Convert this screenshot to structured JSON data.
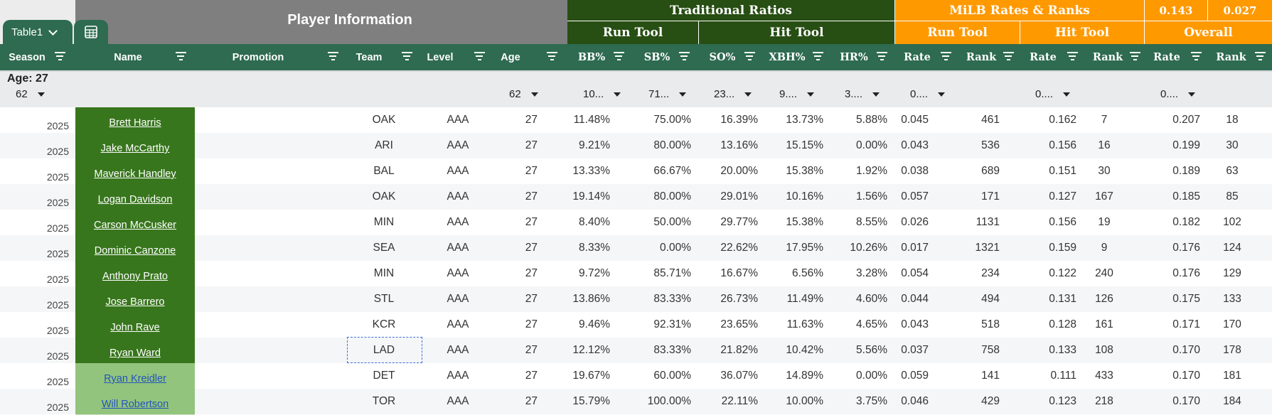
{
  "table_tab": {
    "label": "Table1",
    "chevron_icon": "chevron-down-icon",
    "grid_icon": "table-grid-icon"
  },
  "groups": {
    "player_info": "Player Information",
    "traditional_ratios": "Traditional Ratios",
    "milb": "MiLB Rates & Ranks",
    "val1": "0.143",
    "val2": "0.027",
    "trad_run_tool": "Run Tool",
    "trad_hit_tool": "Hit Tool",
    "milb_run_tool": "Run Tool",
    "milb_hit_tool": "Hit Tool",
    "milb_overall": "Overall"
  },
  "columns": [
    "Season",
    "Name",
    "Promotion",
    "Team",
    "Level",
    "Age",
    "BB%",
    "SB%",
    "SO%",
    "XBH%",
    "HR%",
    "Rate",
    "Rank",
    "Rate",
    "Rank",
    "Rate",
    "Rank"
  ],
  "filter_band": {
    "group_label": "Age: 27",
    "group_count": "62",
    "age": "62",
    "bb": "10...",
    "sb": "71...",
    "so": "23...",
    "xbh": "9....",
    "hr": "3....",
    "run_rate": "0....",
    "hit_rate": "0....",
    "overall_rate": "0...."
  },
  "rows": [
    {
      "season": "2025",
      "name": "Brett Harris",
      "promotion": "",
      "team": "OAK",
      "level": "AAA",
      "age": "27",
      "bb": "11.48%",
      "sb": "75.00%",
      "so": "16.39%",
      "xbh": "13.73%",
      "hr": "5.88%",
      "run_rate": "0.045",
      "run_rank": "461",
      "hit_rate": "0.162",
      "hit_rank": "7",
      "ov_rate": "0.207",
      "ov_rank": "18"
    },
    {
      "season": "2025",
      "name": "Jake McCarthy",
      "promotion": "",
      "team": "ARI",
      "level": "AAA",
      "age": "27",
      "bb": "9.21%",
      "sb": "80.00%",
      "so": "13.16%",
      "xbh": "15.15%",
      "hr": "0.00%",
      "run_rate": "0.043",
      "run_rank": "536",
      "hit_rate": "0.156",
      "hit_rank": "16",
      "ov_rate": "0.199",
      "ov_rank": "30"
    },
    {
      "season": "2025",
      "name": "Maverick Handley",
      "promotion": "",
      "team": "BAL",
      "level": "AAA",
      "age": "27",
      "bb": "13.33%",
      "sb": "66.67%",
      "so": "20.00%",
      "xbh": "15.38%",
      "hr": "1.92%",
      "run_rate": "0.038",
      "run_rank": "689",
      "hit_rate": "0.151",
      "hit_rank": "30",
      "ov_rate": "0.189",
      "ov_rank": "63"
    },
    {
      "season": "2025",
      "name": "Logan Davidson",
      "promotion": "",
      "team": "OAK",
      "level": "AAA",
      "age": "27",
      "bb": "19.14%",
      "sb": "80.00%",
      "so": "29.01%",
      "xbh": "10.16%",
      "hr": "1.56%",
      "run_rate": "0.057",
      "run_rank": "171",
      "hit_rate": "0.127",
      "hit_rank": "167",
      "ov_rate": "0.185",
      "ov_rank": "85"
    },
    {
      "season": "2025",
      "name": "Carson McCusker",
      "promotion": "",
      "team": "MIN",
      "level": "AAA",
      "age": "27",
      "bb": "8.40%",
      "sb": "50.00%",
      "so": "29.77%",
      "xbh": "15.38%",
      "hr": "8.55%",
      "run_rate": "0.026",
      "run_rank": "1131",
      "hit_rate": "0.156",
      "hit_rank": "19",
      "ov_rate": "0.182",
      "ov_rank": "102"
    },
    {
      "season": "2025",
      "name": "Dominic Canzone",
      "promotion": "",
      "team": "SEA",
      "level": "AAA",
      "age": "27",
      "bb": "8.33%",
      "sb": "0.00%",
      "so": "22.62%",
      "xbh": "17.95%",
      "hr": "10.26%",
      "run_rate": "0.017",
      "run_rank": "1321",
      "hit_rate": "0.159",
      "hit_rank": "9",
      "ov_rate": "0.176",
      "ov_rank": "124"
    },
    {
      "season": "2025",
      "name": "Anthony Prato",
      "promotion": "",
      "team": "MIN",
      "level": "AAA",
      "age": "27",
      "bb": "9.72%",
      "sb": "85.71%",
      "so": "16.67%",
      "xbh": "6.56%",
      "hr": "3.28%",
      "run_rate": "0.054",
      "run_rank": "234",
      "hit_rate": "0.122",
      "hit_rank": "240",
      "ov_rate": "0.176",
      "ov_rank": "129"
    },
    {
      "season": "2025",
      "name": "Jose Barrero",
      "promotion": "",
      "team": "STL",
      "level": "AAA",
      "age": "27",
      "bb": "13.86%",
      "sb": "83.33%",
      "so": "26.73%",
      "xbh": "11.49%",
      "hr": "4.60%",
      "run_rate": "0.044",
      "run_rank": "494",
      "hit_rate": "0.131",
      "hit_rank": "126",
      "ov_rate": "0.175",
      "ov_rank": "133"
    },
    {
      "season": "2025",
      "name": "John Rave",
      "promotion": "",
      "team": "KCR",
      "level": "AAA",
      "age": "27",
      "bb": "9.46%",
      "sb": "92.31%",
      "so": "23.65%",
      "xbh": "11.63%",
      "hr": "4.65%",
      "run_rate": "0.043",
      "run_rank": "518",
      "hit_rate": "0.128",
      "hit_rank": "161",
      "ov_rate": "0.171",
      "ov_rank": "170"
    },
    {
      "season": "2025",
      "name": "Ryan Ward",
      "promotion": "",
      "team": "LAD",
      "level": "AAA",
      "age": "27",
      "bb": "12.12%",
      "sb": "83.33%",
      "so": "21.82%",
      "xbh": "10.42%",
      "hr": "5.56%",
      "run_rate": "0.037",
      "run_rank": "758",
      "hit_rate": "0.133",
      "hit_rank": "108",
      "ov_rate": "0.170",
      "ov_rank": "178"
    },
    {
      "season": "2025",
      "name": "Ryan Kreidler",
      "promotion": "",
      "team": "DET",
      "level": "AAA",
      "age": "27",
      "bb": "19.67%",
      "sb": "60.00%",
      "so": "36.07%",
      "xbh": "14.89%",
      "hr": "0.00%",
      "run_rate": "0.059",
      "run_rank": "141",
      "hit_rate": "0.111",
      "hit_rank": "433",
      "ov_rate": "0.170",
      "ov_rank": "181"
    },
    {
      "season": "2025",
      "name": "Will Robertson",
      "promotion": "",
      "team": "TOR",
      "level": "AAA",
      "age": "27",
      "bb": "15.79%",
      "sb": "100.00%",
      "so": "22.11%",
      "xbh": "10.00%",
      "hr": "3.75%",
      "run_rate": "0.046",
      "run_rank": "429",
      "hit_rate": "0.123",
      "hit_rank": "218",
      "ov_rate": "0.170",
      "ov_rank": "184"
    }
  ],
  "colors": {
    "dark_green": "#274e13",
    "header_green": "#2e6b50",
    "orange": "#ff9900",
    "name_green": "#38761d",
    "name_light_green": "#93c47d",
    "grey": "#7f7f7f"
  }
}
